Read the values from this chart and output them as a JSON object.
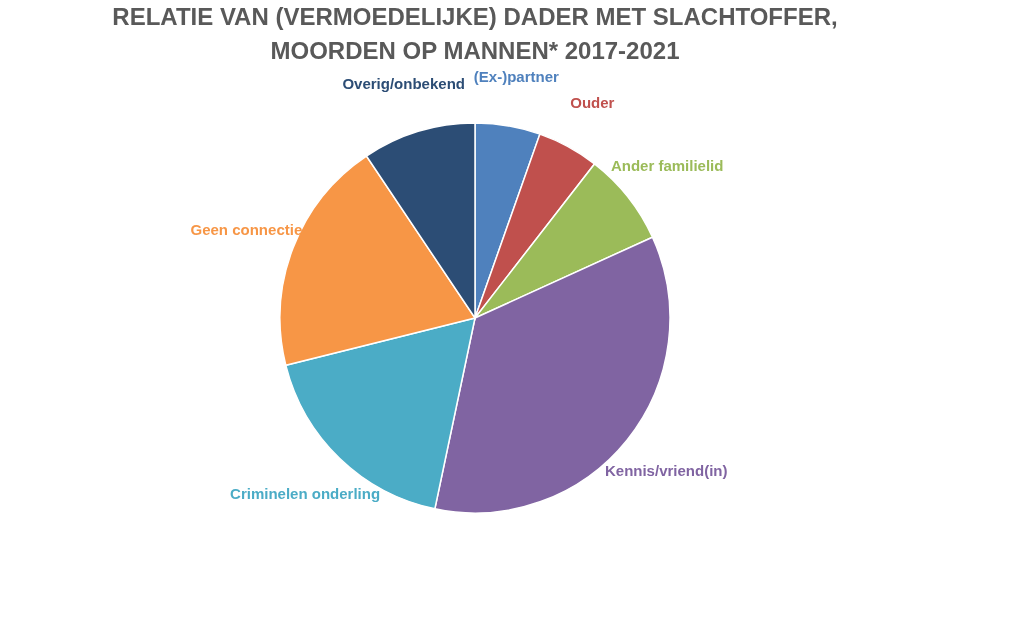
{
  "chart_data": {
    "type": "pie",
    "title": "RELATIE VAN (VERMOEDELIJKE) DADER MET SLACHTOFFER, MOORDEN OP MANNEN* 2017-2021",
    "categories": [
      "(Ex-)partner",
      "Ouder",
      "Ander familielid",
      "Kennis/vriend(in)",
      "Criminelen onderling",
      "Geen connectie",
      "Overig/onbekend"
    ],
    "values": [
      5.4,
      5.1,
      7.7,
      35.1,
      17.8,
      19.5,
      9.4
    ],
    "colors": [
      "#4f81bd",
      "#c0504d",
      "#9bbb59",
      "#8064a2",
      "#4bacc6",
      "#f79646",
      "#2c4d75"
    ],
    "legend": false
  }
}
